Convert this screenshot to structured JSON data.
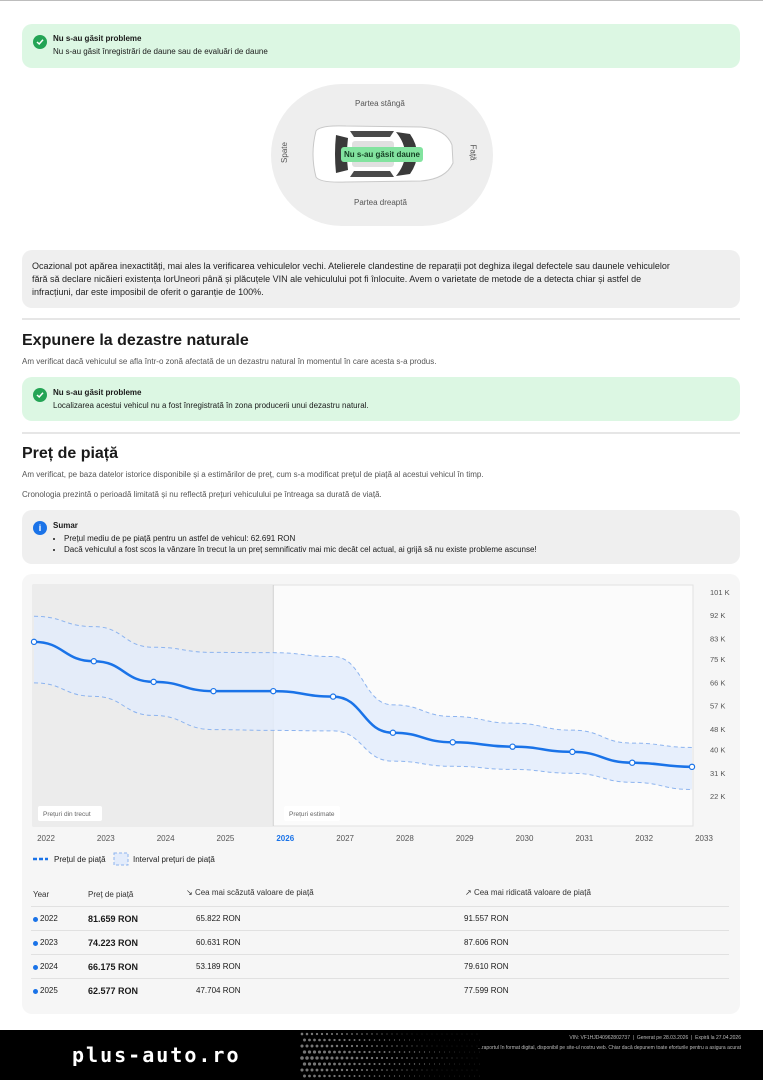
{
  "damage_status": {
    "title": "Nu s-au găsit probleme",
    "text": "Nu s-au găsit înregistrări de daune sau de evaluări de daune"
  },
  "car_diagram": {
    "left": "Partea stângă",
    "right": "Partea dreaptă",
    "rear": "Spate",
    "front": "Față",
    "badge": "Nu s-au găsit daune"
  },
  "disclaimer": {
    "line1": "Ocazional pot apărea inexactități, mai ales la verificarea vehiculelor vechi. Atelierele clandestine de reparații pot deghiza ilegal defectele sau daunele vehiculelor",
    "line2": "fără să declare nicăieri existența lorUneori până și plăcuțele VIN ale vehiculului pot fi înlocuite. Avem o varietate de metode de a detecta chiar și astfel de",
    "line3": "infracțiuni, dar este imposibil de oferit o garanție de 100%."
  },
  "natural_disasters": {
    "heading": "Expunere la dezastre naturale",
    "subtitle": "Am verificat dacă vehiculul se afla într-o zonă afectată de un dezastru natural în momentul în care acesta s-a produs.",
    "status_title": "Nu s-au găsit probleme",
    "status_text": "Localizarea acestui vehicul nu a fost înregistrată în zona producerii unui dezastru natural."
  },
  "market_price": {
    "heading": "Preț de piață",
    "subtitle1": "Am verificat, pe baza datelor istorice disponibile și a estimărilor de preț, cum s-a modificat prețul de piață al acestui vehicul în timp.",
    "subtitle2": "Cronologia prezintă o perioadă limitată și nu reflectă prețuri vehiculului pe întreaga sa durată de viață.",
    "summary_title": "Sumar",
    "summary_item1": "Prețul mediu de pe piață pentru un astfel de vehicul: 62.691 RON",
    "summary_item2": "Dacă vehiculul a fost scos la vânzare în trecut la un preț semnificativ mai mic decât cel actual, ai grijă să nu existe probleme ascunse!"
  },
  "chart_data": {
    "type": "line",
    "x": [
      "2022",
      "2023",
      "2024",
      "2025",
      "2026",
      "2027",
      "2028",
      "2029",
      "2030",
      "2031",
      "2032",
      "2033"
    ],
    "highlight_x": "2026",
    "series": [
      {
        "name": "Prețul de piață",
        "values": [
          81.7,
          74.2,
          66.2,
          62.6,
          62.6,
          60.5,
          46.5,
          42.8,
          41.1,
          39.1,
          34.9,
          33.3
        ]
      },
      {
        "name": "Interval prețuri de piață",
        "lower": [
          65.8,
          60.6,
          53.2,
          47.7,
          47.4,
          47.2,
          35.5,
          33.5,
          32.3,
          30.8,
          27.3,
          24.5
        ],
        "upper": [
          91.6,
          87.6,
          79.6,
          77.6,
          77.5,
          76.0,
          57.3,
          52.8,
          50.2,
          47.5,
          42.5,
          40.8
        ]
      }
    ],
    "y_ticks": [
      "101 K",
      "92 K",
      "83 K",
      "75 K",
      "66 K",
      "57 K",
      "48 K",
      "40 K",
      "31 K",
      "22 K"
    ],
    "ylim": [
      22,
      101
    ],
    "region_past": "Prețuri din trecut",
    "region_future": "Prețuri estimate",
    "legend_price": "Prețul de piață",
    "legend_range": "Interval prețuri de piață",
    "colors": {
      "line": "#1a73e8",
      "band": "#e3ecfb",
      "past_bg": "#ececec"
    }
  },
  "price_table": {
    "col_year": "Year",
    "col_price": "Preț de piață",
    "col_low": "Cea mai scăzută valoare de piață",
    "col_high": "Cea mai ridicată valoare de piață",
    "rows": [
      {
        "year": "2022",
        "price": "81.659 RON",
        "low": "65.822 RON",
        "high": "91.557 RON"
      },
      {
        "year": "2023",
        "price": "74.223 RON",
        "low": "60.631 RON",
        "high": "87.606 RON"
      },
      {
        "year": "2024",
        "price": "66.175 RON",
        "low": "53.189 RON",
        "high": "79.610 RON"
      },
      {
        "year": "2025",
        "price": "62.577 RON",
        "low": "47.704 RON",
        "high": "77.599 RON"
      }
    ]
  },
  "footer": {
    "logo": "plus-auto.ro",
    "vin": "VIN: VF1HJD40962802737",
    "generated": "Generat pe 28.03.2026",
    "expires": "Expiră la 27.04.2026",
    "note": "...raportul în format digital, disponibil pe site-ul nostru web. Chiar dacă depunem toate eforturile pentru a asigura acurat"
  }
}
